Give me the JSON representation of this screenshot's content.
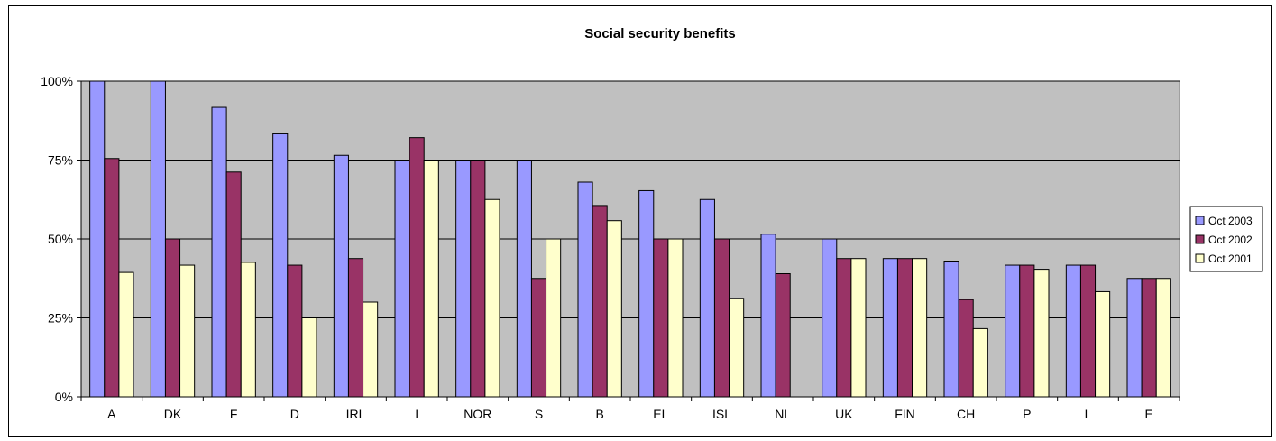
{
  "chart_data": {
    "type": "bar",
    "title": "Social security benefits",
    "xlabel": "",
    "ylabel": "",
    "categories": [
      "A",
      "DK",
      "F",
      "D",
      "IRL",
      "I",
      "NOR",
      "S",
      "B",
      "EL",
      "ISL",
      "NL",
      "UK",
      "FIN",
      "CH",
      "P",
      "L",
      "E"
    ],
    "series": [
      {
        "name": "Oct 2003",
        "color": "#9999FF",
        "values": [
          100,
          100,
          91.7,
          83.3,
          76.5,
          75,
          75,
          75,
          68,
          65.3,
          62.5,
          51.5,
          50,
          43.8,
          43,
          41.7,
          41.7,
          37.5
        ]
      },
      {
        "name": "Oct 2002",
        "color": "#993366",
        "values": [
          75.5,
          50,
          71.2,
          41.7,
          43.8,
          82.1,
          75,
          37.5,
          60.6,
          50,
          50,
          39,
          43.8,
          43.8,
          30.8,
          41.7,
          41.7,
          37.5
        ]
      },
      {
        "name": "Oct 2001",
        "color": "#FFFFCC",
        "values": [
          39.4,
          41.7,
          42.6,
          25,
          30,
          75,
          62.5,
          50,
          55.8,
          50,
          31.2,
          null,
          43.8,
          43.8,
          21.6,
          40.4,
          33.3,
          37.5
        ]
      }
    ],
    "ylim": [
      0,
      100
    ],
    "yticks": [
      0,
      25,
      50,
      75,
      100
    ],
    "ytick_labels": [
      "0%",
      "25%",
      "50%",
      "75%",
      "100%"
    ],
    "grid": true,
    "plot_background": "#C0C0C0",
    "legend": "right"
  }
}
